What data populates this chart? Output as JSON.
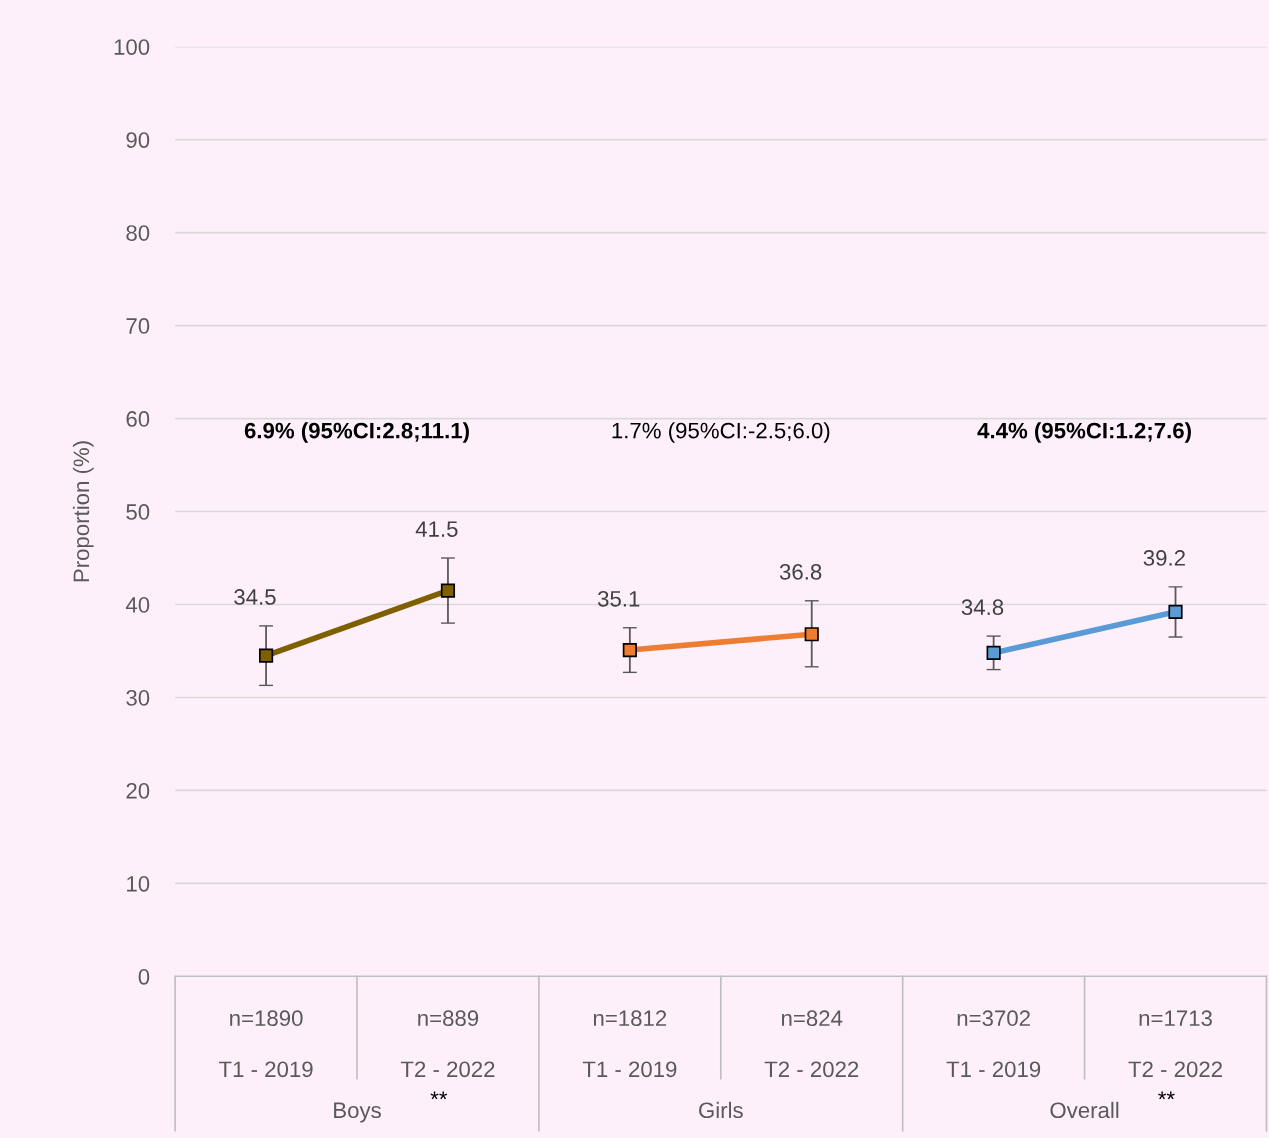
{
  "chart_data": {
    "type": "line",
    "ylabel": "Proportion (%)",
    "categories": [
      "n=1890\n\nT1 - 2019",
      "n=889\n\nT2 - 2022",
      "n=1812\n\nT1 - 2019",
      "n=824\n\nT2 - 2022",
      "n=3702\n\nT1 - 2019",
      "n=1713\n\nT2 - 2022"
    ],
    "series": [
      {
        "color": "#7f6000",
        "values": [
          34.5,
          41.5,
          null,
          null,
          null,
          null
        ],
        "errors": [
          [
            31.3,
            37.7
          ],
          [
            38.0,
            45.0
          ],
          null,
          null,
          null,
          null
        ]
      },
      {
        "color": "#ed7d31",
        "values": [
          null,
          null,
          35.1,
          36.8,
          null,
          null
        ],
        "errors": [
          null,
          null,
          [
            32.7,
            37.5
          ],
          [
            33.3,
            40.4
          ],
          null,
          null
        ]
      },
      {
        "color": "#5b9bd5",
        "values": [
          null,
          null,
          null,
          null,
          34.8,
          39.2
        ],
        "errors": [
          null,
          null,
          null,
          null,
          [
            33.0,
            36.6
          ],
          [
            36.5,
            41.9
          ]
        ]
      }
    ],
    "annotations": [
      "6.9% (95%CI:2.8;11.1)",
      "1.7% (95%CI:-2.5;6.0)",
      "4.4% (95%CI:1.2;7.6)",
      "Boys",
      "Girls",
      "Overall",
      "**",
      "**"
    ],
    "ylim": [
      0,
      100
    ],
    "yticks": [
      0,
      10,
      20,
      30,
      40,
      50,
      60,
      70,
      80,
      90,
      100
    ],
    "grid": "y",
    "marker": "square",
    "line_style": "solid",
    "data_labels": true
  }
}
